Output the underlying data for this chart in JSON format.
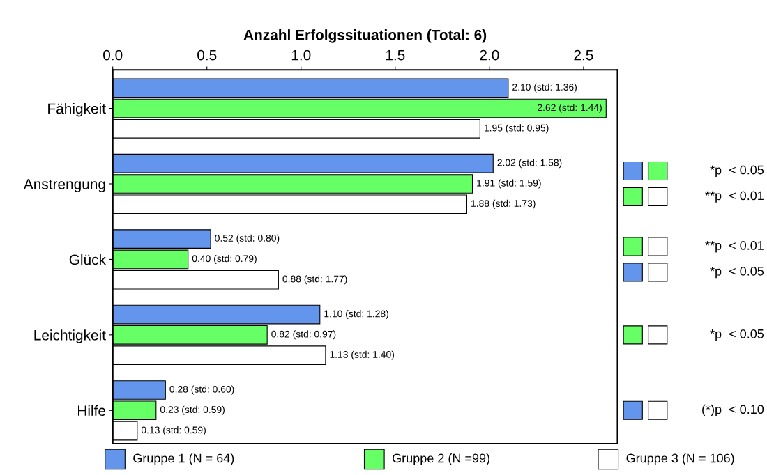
{
  "chart_data": {
    "type": "bar",
    "orientation": "horizontal",
    "xlabel": "Anzahl Erfolgssituationen (Total: 6)",
    "categories": [
      "Fähigkeit",
      "Anstrengung",
      "Glück",
      "Leichtigkeit",
      "Hilfe"
    ],
    "series": [
      {
        "name": "Gruppe 1 (N = 64)",
        "color": "#6495ed",
        "values": [
          2.1,
          2.02,
          0.52,
          1.1,
          0.28
        ],
        "value_labels": [
          "2.10 (std: 1.36)",
          "2.02 (std: 1.58)",
          "0.52 (std: 0.80)",
          "1.10 (std: 1.28)",
          "0.28 (std: 0.60)"
        ]
      },
      {
        "name": "Gruppe 2 (N =99)",
        "color": "#66ff66",
        "values": [
          2.62,
          1.91,
          0.4,
          0.82,
          0.23
        ],
        "value_labels": [
          "2.62 (std: 1.44)",
          "1.91 (std: 1.59)",
          "0.40 (std: 0.79)",
          "0.82 (std: 0.97)",
          "0.23 (std: 0.59)"
        ]
      },
      {
        "name": "Gruppe 3 (N = 106)",
        "color": "#ffffff",
        "values": [
          1.95,
          1.88,
          0.88,
          1.13,
          0.13
        ],
        "value_labels": [
          "1.95 (std: 0.95)",
          "1.88 (std: 1.73)",
          "0.88 (std: 1.77)",
          "1.13 (std: 1.40)",
          "0.13 (std: 0.59)"
        ]
      }
    ],
    "xlim": [
      0,
      2.68
    ],
    "xticks": [
      {
        "value": 0,
        "label": "0.0"
      },
      0.5,
      {
        "value": 1,
        "label": "1.0"
      },
      1.5,
      {
        "value": 2,
        "label": "2.0"
      },
      2.5
    ],
    "grid": false,
    "legend": "bottom",
    "annotations": [
      "*p  < 0.05",
      "**p  < 0.01",
      "**p  < 0.01",
      "*p  < 0.05",
      "*p  < 0.05",
      "(*)p  < 0.10"
    ]
  }
}
